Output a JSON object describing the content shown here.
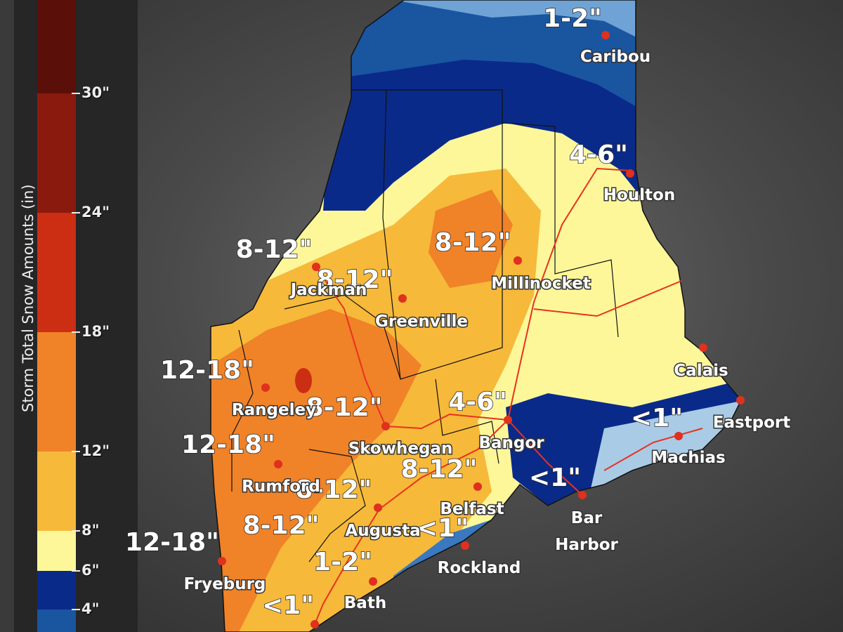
{
  "legend": {
    "title": "Storm Total Snow Amounts (in)",
    "ticks": [
      "30\"",
      "24\"",
      "18\"",
      "12\"",
      "8\"",
      "6\"",
      "4\""
    ],
    "colors": [
      "#5a1008",
      "#8b1a0e",
      "#cc2e14",
      "#f08228",
      "#f6b93a",
      "#fdf79a",
      "#0a2a8a",
      "#1a55a0"
    ]
  },
  "amount_labels": [
    "1-2\"",
    "4-6\"",
    "8-12\"",
    "8-12\"",
    "8-12\"",
    "12-18\"",
    "8-12\"",
    "4-6\"",
    "<1\"",
    "12-18\"",
    "8-12\"",
    "<1\"",
    "8-12\"",
    "8-12\"",
    "<1\"",
    "12-18\"",
    "1-2\"",
    "<1\""
  ],
  "cities": [
    "Caribou",
    "Houlton",
    "Jackman",
    "Greenville",
    "Millinocket",
    "Calais",
    "Rangeley",
    "Eastport",
    "Skowhegan",
    "Bangor",
    "Machias",
    "Rumford",
    "Belfast",
    "Bar Harbor",
    "Augusta",
    "Rockland",
    "Fryeburg",
    "Bath"
  ],
  "colors": {
    "city_dot": "#e0301e",
    "roads": "#e8321e",
    "light_blue": "#a9cbe6",
    "mid_blue": "#3a78c0",
    "dark_blue": "#0a2a8a"
  }
}
